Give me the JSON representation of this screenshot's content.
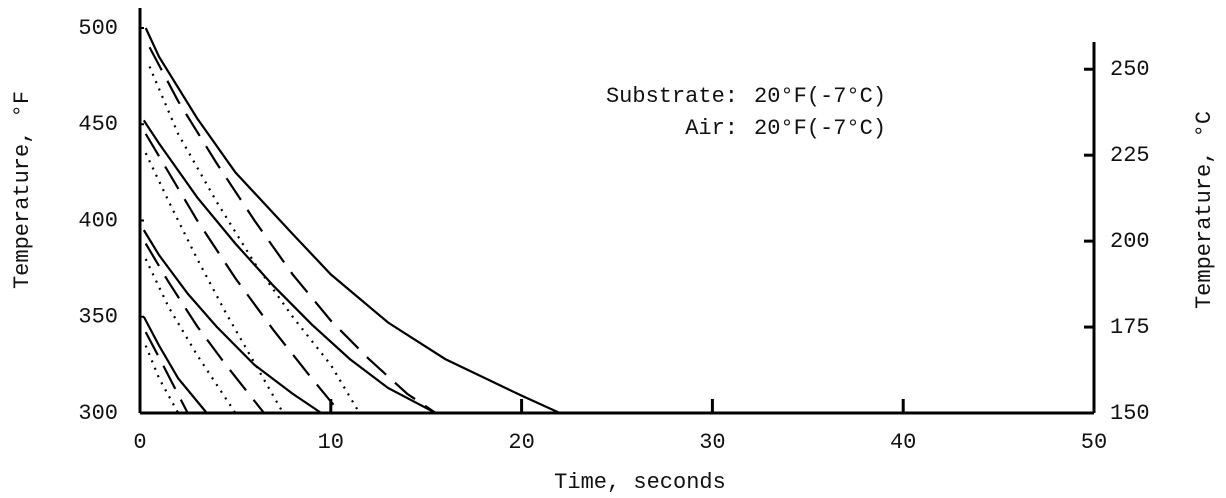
{
  "chart_data": {
    "type": "line",
    "xlabel": "Time, seconds",
    "ylabel": "Temperature, °F",
    "y2label": "Temperature, °C",
    "annotations": [
      {
        "label": "Substrate:",
        "text": "20°F(-7°C)"
      },
      {
        "label": "Air:",
        "text": "20°F(-7°C)"
      }
    ],
    "xlim": [
      0,
      50
    ],
    "xticks": [
      0,
      10,
      20,
      30,
      40,
      50
    ],
    "ylim": [
      300,
      500
    ],
    "yticks": [
      300,
      350,
      400,
      450,
      500
    ],
    "y2lim": [
      150,
      262
    ],
    "y2ticks": [
      150,
      175,
      200,
      225,
      250
    ],
    "series": [
      {
        "style": "solid",
        "color": "#000000",
        "x": [
          0.3,
          1,
          3,
          5,
          8,
          10,
          13,
          16,
          20,
          22
        ],
        "values": [
          500,
          485,
          453,
          425,
          393,
          372,
          347,
          328,
          309,
          300
        ]
      },
      {
        "style": "dashed",
        "color": "#000000",
        "x": [
          0.5,
          2,
          4,
          6,
          8,
          10,
          12,
          14,
          15.5
        ],
        "values": [
          490,
          462,
          430,
          400,
          372,
          348,
          328,
          310,
          300
        ]
      },
      {
        "style": "dotted",
        "color": "#000000",
        "x": [
          0.5,
          2,
          4,
          6,
          8,
          10,
          11.5
        ],
        "values": [
          480,
          445,
          410,
          378,
          350,
          325,
          300
        ]
      },
      {
        "style": "solid",
        "color": "#000000",
        "x": [
          0.2,
          1,
          3,
          5,
          7,
          9,
          11,
          13,
          15.5
        ],
        "values": [
          452,
          440,
          412,
          388,
          366,
          346,
          328,
          313,
          300
        ]
      },
      {
        "style": "dashed",
        "color": "#000000",
        "x": [
          0.3,
          1.5,
          3,
          5,
          7,
          9,
          10.5
        ],
        "values": [
          445,
          425,
          400,
          370,
          343,
          318,
          300
        ]
      },
      {
        "style": "dotted",
        "color": "#000000",
        "x": [
          0.3,
          1.5,
          3,
          4.5,
          6,
          7.5
        ],
        "values": [
          435,
          410,
          380,
          352,
          326,
          300
        ]
      },
      {
        "style": "solid",
        "color": "#000000",
        "x": [
          0.2,
          1,
          2.5,
          4,
          6,
          8,
          9.5
        ],
        "values": [
          395,
          382,
          362,
          345,
          325,
          310,
          300
        ]
      },
      {
        "style": "dashed",
        "color": "#000000",
        "x": [
          0.3,
          1.5,
          3,
          4.5,
          6.5
        ],
        "values": [
          388,
          368,
          345,
          325,
          300
        ]
      },
      {
        "style": "dotted",
        "color": "#000000",
        "x": [
          0.3,
          1.5,
          3,
          5
        ],
        "values": [
          380,
          355,
          330,
          300
        ]
      },
      {
        "style": "solid",
        "color": "#000000",
        "x": [
          0.2,
          1,
          2,
          3.5
        ],
        "values": [
          350,
          335,
          318,
          300
        ]
      },
      {
        "style": "dashed",
        "color": "#000000",
        "x": [
          0.3,
          1.2,
          2.5
        ],
        "values": [
          342,
          325,
          300
        ]
      },
      {
        "style": "dotted",
        "color": "#000000",
        "x": [
          0.3,
          1,
          2
        ],
        "values": [
          335,
          318,
          300
        ]
      }
    ]
  }
}
